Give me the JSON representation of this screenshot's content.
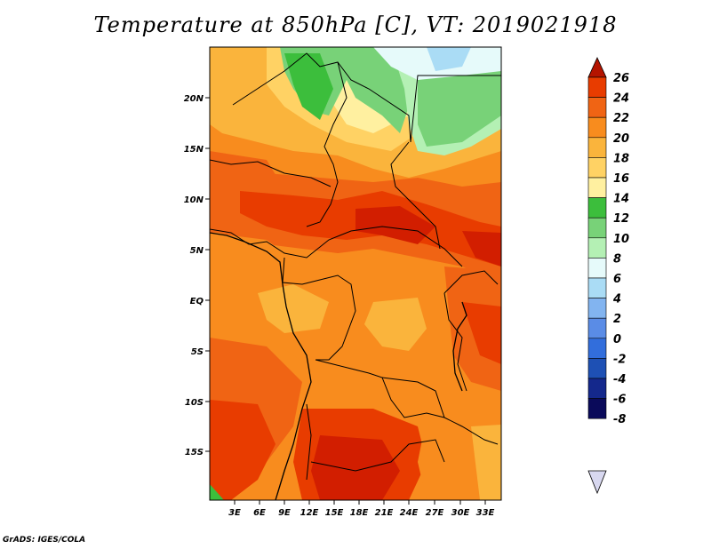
{
  "title": "Temperature at 850hPa [C], VT: 2019021918",
  "credit": "GrADS: IGES/COLA",
  "lat_labels": [
    "20N",
    "15N",
    "10N",
    "5N",
    "EQ",
    "5S",
    "10S",
    "15S"
  ],
  "lon_labels": [
    "3E",
    "6E",
    "9E",
    "12E",
    "15E",
    "18E",
    "21E",
    "24E",
    "27E",
    "30E",
    "33E"
  ],
  "colorbar": {
    "labels": [
      "26",
      "24",
      "22",
      "20",
      "18",
      "16",
      "14",
      "12",
      "10",
      "8",
      "6",
      "4",
      "2",
      "0",
      "-2",
      "-4",
      "-6",
      "-8"
    ],
    "colors": [
      "#d21e00",
      "#e83c00",
      "#f06414",
      "#f88c1e",
      "#fab43c",
      "#ffd264",
      "#fff0a0",
      "#3cbe3c",
      "#78d278",
      "#b4f0b4",
      "#e6fafa",
      "#aadcf5",
      "#82b4f0",
      "#5a8ce6",
      "#326edc",
      "#1e50b4",
      "#14288c",
      "#0a0a5a",
      "#000050"
    ],
    "top_arrow_color": "#b41400",
    "bottom_arrow_color": "#d8d8f0"
  }
}
